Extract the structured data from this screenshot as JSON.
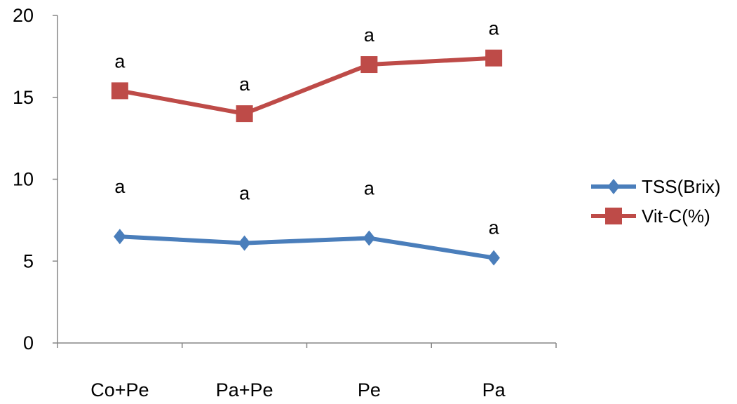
{
  "chart_data": {
    "type": "line",
    "categories": [
      "Co+Pe",
      "Pa+Pe",
      "Pe",
      "Pa"
    ],
    "ylim": [
      0,
      20
    ],
    "yticks": [
      0,
      5,
      10,
      15,
      20
    ],
    "grid": false,
    "legend_position": "right",
    "series": [
      {
        "name": "TSS(Brix)",
        "color": "#4a7ebb",
        "marker": "diamond",
        "values": [
          6.5,
          6.1,
          6.4,
          5.2
        ],
        "labels": [
          "a",
          "a",
          "a",
          "a"
        ]
      },
      {
        "name": "Vit-C(%)",
        "color": "#be4b48",
        "marker": "square",
        "values": [
          15.4,
          14.0,
          17.0,
          17.4
        ],
        "labels": [
          "a",
          "a",
          "a",
          "a"
        ]
      }
    ]
  }
}
